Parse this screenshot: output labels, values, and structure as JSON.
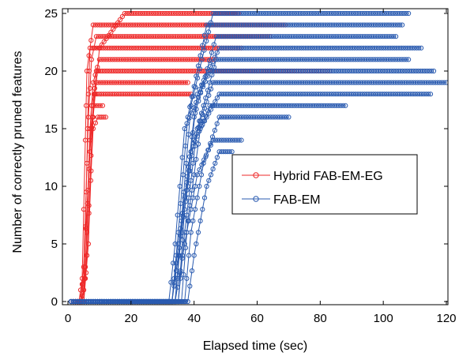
{
  "chart_data": {
    "type": "line",
    "title": "",
    "xlabel": "Elapsed time (sec)",
    "ylabel": "Number of correctly pruned features",
    "xlim": [
      0,
      120
    ],
    "ylim": [
      0,
      25
    ],
    "xticks": [
      "0",
      "20",
      "40",
      "60",
      "80",
      "100",
      "120"
    ],
    "yticks": [
      "0",
      "5",
      "10",
      "15",
      "20",
      "25"
    ],
    "grid": false,
    "legend_position": "center-right",
    "series": [
      {
        "name": "Hybrid FAB-EM-EG",
        "color": "#ee2a2a",
        "marker": "circle",
        "description_note": "",
        "runs": [
          {
            "x": [
              1,
              4,
              5,
              6,
              6.5,
              7,
              55
            ],
            "y": [
              0,
              0,
              1,
              12,
              18,
              22,
              22
            ]
          },
          {
            "x": [
              1,
              3.5,
              4.5,
              5.5,
              6,
              8,
              69
            ],
            "y": [
              0,
              0,
              2,
              14,
              20,
              24,
              24
            ]
          },
          {
            "x": [
              1,
              4,
              5,
              6.5,
              7.5,
              9,
              64
            ],
            "y": [
              0,
              0,
              3,
              16,
              21,
              23,
              23
            ]
          },
          {
            "x": [
              1,
              4.5,
              5.5,
              7,
              8,
              10,
              47
            ],
            "y": [
              0,
              0,
              2,
              15,
              19,
              21,
              21
            ]
          },
          {
            "x": [
              1,
              5,
              6,
              8,
              9,
              11,
              83
            ],
            "y": [
              0,
              0,
              4,
              17,
              20,
              20,
              20
            ]
          },
          {
            "x": [
              1,
              4,
              5.5,
              7,
              8.5,
              39
            ],
            "y": [
              0,
              0,
              3,
              14,
              18,
              18
            ]
          },
          {
            "x": [
              1,
              5,
              6.5,
              8,
              10,
              18,
              54
            ],
            "y": [
              0,
              0,
              5,
              16,
              22,
              25,
              25
            ]
          },
          {
            "x": [
              1,
              4,
              5,
              7,
              8,
              11
            ],
            "y": [
              0,
              0,
              3,
              13,
              17,
              17
            ]
          },
          {
            "x": [
              1,
              4.5,
              6,
              8,
              9.5,
              12
            ],
            "y": [
              0,
              0,
              4,
              15,
              16,
              16
            ]
          },
          {
            "x": [
              1,
              5,
              6,
              7.5,
              9,
              38
            ],
            "y": [
              0,
              0,
              6,
              17,
              19,
              19
            ]
          }
        ]
      },
      {
        "name": "FAB-EM",
        "color": "#2a5bb0",
        "marker": "circle",
        "runs": [
          {
            "x": [
              1,
              33,
              35,
              38,
              44,
              106
            ],
            "y": [
              0,
              0,
              6,
              16,
              24,
              24
            ]
          },
          {
            "x": [
              1,
              32,
              34,
              37,
              45,
              116
            ],
            "y": [
              0,
              0,
              5,
              15,
              20,
              20
            ]
          },
          {
            "x": [
              1,
              34,
              36,
              39,
              46,
              108
            ],
            "y": [
              0,
              0,
              7,
              17,
              25,
              25
            ]
          },
          {
            "x": [
              1,
              33,
              35,
              40,
              47,
              104
            ],
            "y": [
              0,
              0,
              4,
              16,
              23,
              23
            ]
          },
          {
            "x": [
              1,
              35,
              37,
              41,
              48,
              112
            ],
            "y": [
              0,
              0,
              8,
              18,
              22,
              22
            ]
          },
          {
            "x": [
              1,
              34,
              36,
              40,
              46,
              120
            ],
            "y": [
              0,
              0,
              6,
              14,
              19,
              19
            ]
          },
          {
            "x": [
              1,
              36,
              38,
              42,
              48,
              115
            ],
            "y": [
              0,
              0,
              7,
              15,
              18,
              18
            ]
          },
          {
            "x": [
              1,
              33,
              35,
              39,
              45,
              88
            ],
            "y": [
              0,
              0,
              5,
              13,
              17,
              17
            ]
          },
          {
            "x": [
              1,
              35,
              37,
              41,
              47,
              108
            ],
            "y": [
              0,
              0,
              6,
              15,
              21,
              21
            ]
          },
          {
            "x": [
              1,
              37,
              39,
              43,
              48,
              70
            ],
            "y": [
              0,
              0,
              6,
              12,
              16,
              16
            ]
          },
          {
            "x": [
              1,
              34,
              37,
              41,
              46,
              55
            ],
            "y": [
              0,
              0,
              5,
              11,
              14,
              14
            ]
          },
          {
            "x": [
              1,
              38,
              40,
              44,
              48,
              52
            ],
            "y": [
              0,
              0,
              4,
              10,
              13,
              13
            ]
          }
        ]
      }
    ]
  }
}
